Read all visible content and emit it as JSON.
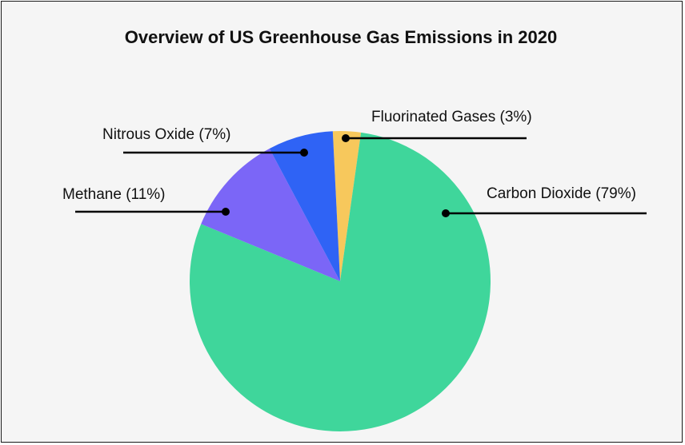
{
  "chart_data": {
    "type": "pie",
    "title": "Overview of US Greenhouse Gas Emissions in 2020",
    "slices": [
      {
        "name": "Fluorinated Gases",
        "value": 3,
        "label": "Fluorinated Gases (3%)",
        "color": "#F7C85C"
      },
      {
        "name": "Carbon Dioxide",
        "value": 79,
        "label": "Carbon Dioxide (79%)",
        "color": "#3FD69B"
      },
      {
        "name": "Methane",
        "value": 11,
        "label": "Methane (11%)",
        "color": "#7B66F7"
      },
      {
        "name": "Nitrous Oxide",
        "value": 7,
        "label": "Nitrous Oxide (7%)",
        "color": "#2F63F5"
      }
    ],
    "legend": "none"
  }
}
